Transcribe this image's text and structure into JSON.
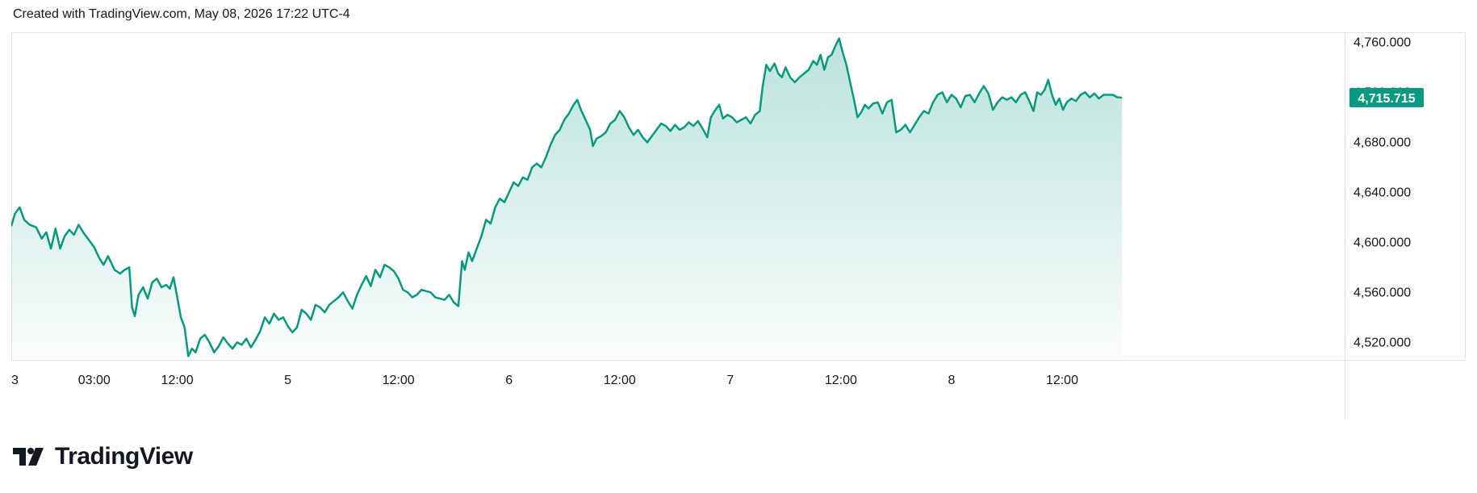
{
  "header": {
    "text": "Created with TradingView.com, May 08, 2026 17:22 UTC-4"
  },
  "brand": {
    "name": "TradingView"
  },
  "colors": {
    "line": "#089981",
    "fill_top": "rgba(8,153,129,0.28)",
    "fill_bottom": "rgba(8,153,129,0.02)",
    "grid": "#e0e3eb",
    "text": "#131722"
  },
  "chart_data": {
    "type": "area",
    "last_price_label": "4,715.715",
    "last_price": 4715.715,
    "ylim": [
      4506,
      4768
    ],
    "y_ticks": [
      {
        "value": 4760,
        "label": "4,760.000"
      },
      {
        "value": 4720,
        "label": "4,720.000"
      },
      {
        "value": 4680,
        "label": "4,680.000"
      },
      {
        "value": 4640,
        "label": "4,640.000"
      },
      {
        "value": 4600,
        "label": "4,600.000"
      },
      {
        "value": 4560,
        "label": "4,560.000"
      },
      {
        "value": 4520,
        "label": "4,520.000"
      }
    ],
    "xlim": [
      0,
      126
    ],
    "x_ticks": [
      {
        "t": 0,
        "label": "3"
      },
      {
        "t": 9,
        "label": "03:00"
      },
      {
        "t": 18,
        "label": "12:00"
      },
      {
        "t": 30,
        "label": "5"
      },
      {
        "t": 42,
        "label": "12:00"
      },
      {
        "t": 54,
        "label": "6"
      },
      {
        "t": 66,
        "label": "12:00"
      },
      {
        "t": 78,
        "label": "7"
      },
      {
        "t": 90,
        "label": "12:00"
      },
      {
        "t": 102,
        "label": "8"
      },
      {
        "t": 114,
        "label": "12:00"
      }
    ],
    "series": [
      {
        "points": [
          [
            0,
            4613
          ],
          [
            0.4,
            4623
          ],
          [
            0.9,
            4628
          ],
          [
            1.4,
            4618
          ],
          [
            2,
            4614
          ],
          [
            2.7,
            4612
          ],
          [
            3.3,
            4603
          ],
          [
            3.8,
            4608
          ],
          [
            4.3,
            4595
          ],
          [
            4.8,
            4611
          ],
          [
            5.3,
            4595
          ],
          [
            5.8,
            4605
          ],
          [
            6.3,
            4610
          ],
          [
            6.8,
            4606
          ],
          [
            7.3,
            4614
          ],
          [
            7.9,
            4607
          ],
          [
            8.5,
            4601
          ],
          [
            9,
            4596
          ],
          [
            9.5,
            4588
          ],
          [
            10,
            4582
          ],
          [
            10.5,
            4589
          ],
          [
            11.2,
            4578
          ],
          [
            11.8,
            4575
          ],
          [
            12.3,
            4578
          ],
          [
            12.8,
            4580
          ],
          [
            13.1,
            4548
          ],
          [
            13.4,
            4541
          ],
          [
            13.8,
            4558
          ],
          [
            14.3,
            4564
          ],
          [
            14.8,
            4555
          ],
          [
            15.3,
            4568
          ],
          [
            15.8,
            4571
          ],
          [
            16.3,
            4564
          ],
          [
            16.8,
            4566
          ],
          [
            17.2,
            4563
          ],
          [
            17.6,
            4572
          ],
          [
            18.0,
            4556
          ],
          [
            18.4,
            4540
          ],
          [
            18.8,
            4532
          ],
          [
            19.2,
            4509
          ],
          [
            19.6,
            4515
          ],
          [
            20,
            4512
          ],
          [
            20.5,
            4523
          ],
          [
            21,
            4526
          ],
          [
            21.5,
            4520
          ],
          [
            22,
            4512
          ],
          [
            22.5,
            4517
          ],
          [
            23,
            4524
          ],
          [
            23.5,
            4519
          ],
          [
            24,
            4515
          ],
          [
            24.5,
            4520
          ],
          [
            25,
            4518
          ],
          [
            25.5,
            4523
          ],
          [
            26,
            4516
          ],
          [
            26.5,
            4522
          ],
          [
            27,
            4529
          ],
          [
            27.5,
            4540
          ],
          [
            28,
            4535
          ],
          [
            28.5,
            4543
          ],
          [
            29,
            4538
          ],
          [
            29.5,
            4540
          ],
          [
            30,
            4533
          ],
          [
            30.5,
            4528
          ],
          [
            31,
            4532
          ],
          [
            31.5,
            4546
          ],
          [
            32,
            4543
          ],
          [
            32.5,
            4538
          ],
          [
            33,
            4550
          ],
          [
            33.5,
            4548
          ],
          [
            34,
            4544
          ],
          [
            34.5,
            4550
          ],
          [
            35,
            4553
          ],
          [
            35.5,
            4556
          ],
          [
            36,
            4560
          ],
          [
            36.5,
            4553
          ],
          [
            37,
            4547
          ],
          [
            37.5,
            4558
          ],
          [
            38,
            4566
          ],
          [
            38.5,
            4573
          ],
          [
            39,
            4565
          ],
          [
            39.5,
            4578
          ],
          [
            40,
            4572
          ],
          [
            40.5,
            4582
          ],
          [
            41,
            4580
          ],
          [
            41.5,
            4577
          ],
          [
            42,
            4571
          ],
          [
            42.5,
            4562
          ],
          [
            43,
            4560
          ],
          [
            43.5,
            4556
          ],
          [
            44,
            4558
          ],
          [
            44.5,
            4562
          ],
          [
            45,
            4561
          ],
          [
            45.5,
            4560
          ],
          [
            46,
            4556
          ],
          [
            46.5,
            4555
          ],
          [
            47,
            4554
          ],
          [
            47.5,
            4558
          ],
          [
            48,
            4552
          ],
          [
            48.5,
            4549
          ],
          [
            48.9,
            4585
          ],
          [
            49.2,
            4578
          ],
          [
            49.6,
            4592
          ],
          [
            50,
            4585
          ],
          [
            50.5,
            4595
          ],
          [
            51,
            4605
          ],
          [
            51.5,
            4618
          ],
          [
            52,
            4615
          ],
          [
            52.5,
            4628
          ],
          [
            53,
            4635
          ],
          [
            53.5,
            4632
          ],
          [
            54,
            4640
          ],
          [
            54.5,
            4648
          ],
          [
            55,
            4645
          ],
          [
            55.5,
            4652
          ],
          [
            56,
            4650
          ],
          [
            56.5,
            4660
          ],
          [
            57,
            4663
          ],
          [
            57.5,
            4660
          ],
          [
            58,
            4668
          ],
          [
            58.5,
            4678
          ],
          [
            59,
            4686
          ],
          [
            59.5,
            4690
          ],
          [
            60,
            4698
          ],
          [
            60.5,
            4703
          ],
          [
            61,
            4710
          ],
          [
            61.4,
            4714
          ],
          [
            61.8,
            4706
          ],
          [
            62.3,
            4698
          ],
          [
            62.8,
            4690
          ],
          [
            63.1,
            4677
          ],
          [
            63.5,
            4683
          ],
          [
            64,
            4685
          ],
          [
            64.5,
            4688
          ],
          [
            65,
            4695
          ],
          [
            65.5,
            4698
          ],
          [
            66,
            4705
          ],
          [
            66.5,
            4700
          ],
          [
            67,
            4692
          ],
          [
            67.5,
            4686
          ],
          [
            68,
            4690
          ],
          [
            68.5,
            4684
          ],
          [
            69,
            4680
          ],
          [
            69.5,
            4685
          ],
          [
            70,
            4690
          ],
          [
            70.5,
            4695
          ],
          [
            71,
            4693
          ],
          [
            71.5,
            4689
          ],
          [
            72,
            4694
          ],
          [
            72.5,
            4690
          ],
          [
            73,
            4692
          ],
          [
            73.5,
            4696
          ],
          [
            74,
            4693
          ],
          [
            74.5,
            4697
          ],
          [
            75,
            4691
          ],
          [
            75.5,
            4684
          ],
          [
            75.9,
            4700
          ],
          [
            76.3,
            4705
          ],
          [
            76.8,
            4710
          ],
          [
            77.2,
            4699
          ],
          [
            77.7,
            4702
          ],
          [
            78.2,
            4700
          ],
          [
            78.7,
            4696
          ],
          [
            79.2,
            4698
          ],
          [
            79.7,
            4700
          ],
          [
            80.2,
            4695
          ],
          [
            80.7,
            4702
          ],
          [
            81.2,
            4705
          ],
          [
            81.5,
            4724
          ],
          [
            81.9,
            4742
          ],
          [
            82.3,
            4737
          ],
          [
            82.8,
            4743
          ],
          [
            83.2,
            4735
          ],
          [
            83.6,
            4732
          ],
          [
            84,
            4740
          ],
          [
            84.5,
            4732
          ],
          [
            85,
            4728
          ],
          [
            85.5,
            4732
          ],
          [
            86,
            4735
          ],
          [
            86.5,
            4738
          ],
          [
            87,
            4745
          ],
          [
            87.4,
            4742
          ],
          [
            87.8,
            4750
          ],
          [
            88.2,
            4738
          ],
          [
            88.6,
            4748
          ],
          [
            89,
            4750
          ],
          [
            89.4,
            4757
          ],
          [
            89.8,
            4763
          ],
          [
            90.2,
            4752
          ],
          [
            90.6,
            4742
          ],
          [
            91,
            4728
          ],
          [
            91.4,
            4715
          ],
          [
            91.8,
            4700
          ],
          [
            92.2,
            4704
          ],
          [
            92.6,
            4710
          ],
          [
            93,
            4707
          ],
          [
            93.5,
            4711
          ],
          [
            94,
            4712
          ],
          [
            94.5,
            4703
          ],
          [
            95,
            4712
          ],
          [
            95.5,
            4714
          ],
          [
            96,
            4688
          ],
          [
            96.5,
            4690
          ],
          [
            97,
            4694
          ],
          [
            97.5,
            4688
          ],
          [
            98,
            4694
          ],
          [
            98.5,
            4700
          ],
          [
            99,
            4705
          ],
          [
            99.5,
            4703
          ],
          [
            100,
            4712
          ],
          [
            100.5,
            4718
          ],
          [
            101,
            4720
          ],
          [
            101.5,
            4712
          ],
          [
            102,
            4718
          ],
          [
            102.5,
            4715
          ],
          [
            103,
            4708
          ],
          [
            103.5,
            4717
          ],
          [
            104,
            4718
          ],
          [
            104.5,
            4712
          ],
          [
            105,
            4719
          ],
          [
            105.5,
            4725
          ],
          [
            106,
            4719
          ],
          [
            106.5,
            4706
          ],
          [
            107,
            4712
          ],
          [
            107.5,
            4716
          ],
          [
            108,
            4714
          ],
          [
            108.5,
            4716
          ],
          [
            109,
            4712
          ],
          [
            109.5,
            4718
          ],
          [
            110,
            4720
          ],
          [
            110.5,
            4712
          ],
          [
            110.9,
            4705
          ],
          [
            111.3,
            4720
          ],
          [
            111.7,
            4718
          ],
          [
            112.1,
            4722
          ],
          [
            112.5,
            4730
          ],
          [
            112.9,
            4718
          ],
          [
            113.3,
            4710
          ],
          [
            113.7,
            4715
          ],
          [
            114.1,
            4706
          ],
          [
            114.5,
            4712
          ],
          [
            115,
            4715
          ],
          [
            115.5,
            4713
          ],
          [
            116,
            4718
          ],
          [
            116.5,
            4720
          ],
          [
            117,
            4716
          ],
          [
            117.5,
            4719
          ],
          [
            118,
            4715
          ],
          [
            118.5,
            4718
          ],
          [
            119.5,
            4718
          ],
          [
            120,
            4716
          ],
          [
            120.5,
            4715.7
          ]
        ]
      }
    ]
  }
}
